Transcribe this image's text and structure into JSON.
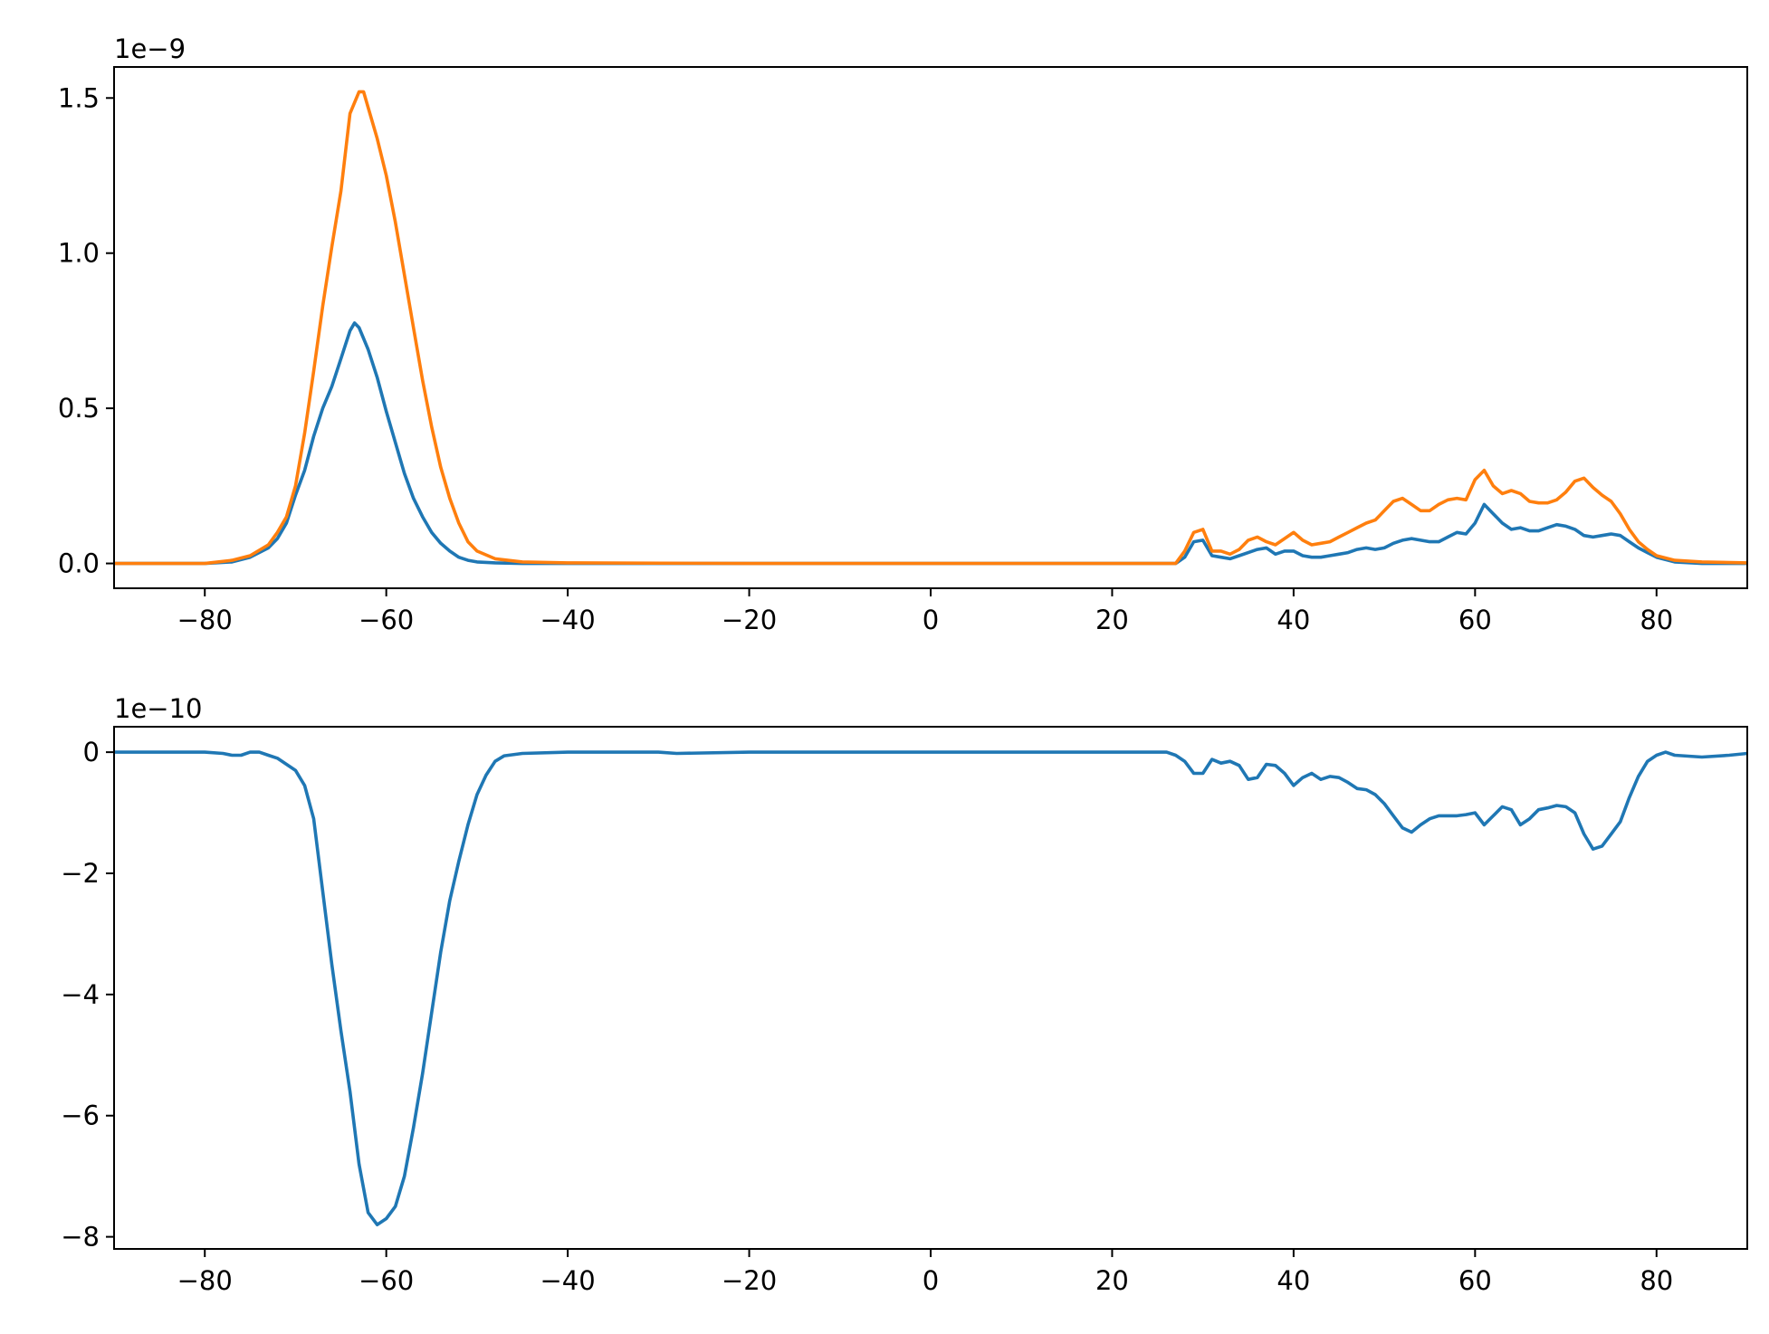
{
  "chart_data": [
    {
      "type": "line",
      "title": "",
      "xlabel": "",
      "ylabel": "",
      "offset_label": "1e−9",
      "offset_multiplier": 1e-09,
      "xlim": [
        -90,
        90
      ],
      "ylim": [
        -0.08,
        1.6
      ],
      "grid": false,
      "xticks": [
        -80,
        -60,
        -40,
        -20,
        0,
        20,
        40,
        60,
        80
      ],
      "xtick_labels": [
        "−80",
        "−60",
        "−40",
        "−20",
        "0",
        "20",
        "40",
        "60",
        "80"
      ],
      "yticks": [
        0.0,
        0.5,
        1.0,
        1.5
      ],
      "ytick_labels": [
        "0.0",
        "0.5",
        "1.0",
        "1.5"
      ],
      "series": [
        {
          "color": "#1f77b4",
          "x": [
            -90,
            -80,
            -77,
            -75,
            -73,
            -72,
            -71,
            -70,
            -69,
            -68,
            -67,
            -66,
            -65,
            -64,
            -63.5,
            -63,
            -62,
            -61,
            -60,
            -59,
            -58,
            -57,
            -56,
            -55,
            -54,
            -53,
            -52,
            -51,
            -50,
            -48,
            -45,
            -40,
            -20,
            0,
            26,
            27,
            28,
            29,
            30,
            31,
            32,
            33,
            34,
            35,
            36,
            37,
            38,
            39,
            40,
            41,
            42,
            43,
            44,
            45,
            46,
            47,
            48,
            49,
            50,
            51,
            52,
            53,
            54,
            55,
            56,
            57,
            58,
            59,
            60,
            61,
            62,
            63,
            64,
            65,
            66,
            67,
            68,
            69,
            70,
            71,
            72,
            73,
            74,
            75,
            76,
            77,
            78,
            79,
            80,
            82,
            85,
            90
          ],
          "values": [
            0.0,
            0.0,
            0.005,
            0.02,
            0.05,
            0.08,
            0.13,
            0.22,
            0.3,
            0.41,
            0.5,
            0.57,
            0.66,
            0.75,
            0.775,
            0.76,
            0.69,
            0.6,
            0.49,
            0.39,
            0.29,
            0.21,
            0.15,
            0.1,
            0.065,
            0.04,
            0.02,
            0.01,
            0.005,
            0.002,
            0.0,
            0.0,
            0.0,
            0.0,
            0.0,
            0.0,
            0.02,
            0.07,
            0.075,
            0.025,
            0.02,
            0.015,
            0.025,
            0.035,
            0.045,
            0.05,
            0.03,
            0.04,
            0.04,
            0.025,
            0.02,
            0.02,
            0.025,
            0.03,
            0.035,
            0.045,
            0.05,
            0.045,
            0.05,
            0.065,
            0.075,
            0.08,
            0.075,
            0.07,
            0.07,
            0.085,
            0.1,
            0.095,
            0.13,
            0.19,
            0.16,
            0.13,
            0.11,
            0.115,
            0.105,
            0.105,
            0.115,
            0.125,
            0.12,
            0.11,
            0.09,
            0.085,
            0.09,
            0.095,
            0.09,
            0.07,
            0.05,
            0.035,
            0.02,
            0.005,
            0.0,
            0.0
          ]
        },
        {
          "color": "#ff7f0e",
          "x": [
            -90,
            -80,
            -77,
            -75,
            -73,
            -72,
            -71,
            -70,
            -69,
            -68,
            -67,
            -66,
            -65,
            -64,
            -63,
            -62.5,
            -62,
            -61,
            -60,
            -59,
            -58,
            -57,
            -56,
            -55,
            -54,
            -53,
            -52,
            -51,
            -50,
            -48,
            -45,
            -40,
            -20,
            0,
            26,
            27,
            28,
            29,
            30,
            31,
            32,
            33,
            34,
            35,
            36,
            37,
            38,
            39,
            40,
            41,
            42,
            43,
            44,
            45,
            46,
            47,
            48,
            49,
            50,
            51,
            52,
            53,
            54,
            55,
            56,
            57,
            58,
            59,
            60,
            61,
            62,
            63,
            64,
            65,
            66,
            67,
            68,
            69,
            70,
            71,
            72,
            73,
            74,
            75,
            76,
            77,
            78,
            79,
            80,
            82,
            85,
            90
          ],
          "values": [
            0.0,
            0.0,
            0.01,
            0.025,
            0.06,
            0.1,
            0.15,
            0.25,
            0.42,
            0.62,
            0.83,
            1.02,
            1.2,
            1.45,
            1.52,
            1.52,
            1.47,
            1.37,
            1.25,
            1.1,
            0.93,
            0.76,
            0.59,
            0.44,
            0.31,
            0.21,
            0.13,
            0.07,
            0.04,
            0.015,
            0.005,
            0.002,
            0.0,
            0.0,
            0.0,
            0.0,
            0.04,
            0.1,
            0.11,
            0.04,
            0.04,
            0.03,
            0.045,
            0.075,
            0.085,
            0.07,
            0.06,
            0.08,
            0.1,
            0.075,
            0.06,
            0.065,
            0.07,
            0.085,
            0.1,
            0.115,
            0.13,
            0.14,
            0.17,
            0.2,
            0.21,
            0.19,
            0.17,
            0.17,
            0.19,
            0.205,
            0.21,
            0.205,
            0.27,
            0.3,
            0.25,
            0.225,
            0.235,
            0.225,
            0.2,
            0.195,
            0.195,
            0.205,
            0.23,
            0.265,
            0.275,
            0.245,
            0.22,
            0.2,
            0.16,
            0.11,
            0.07,
            0.045,
            0.025,
            0.01,
            0.005,
            0.002
          ]
        }
      ]
    },
    {
      "type": "line",
      "title": "",
      "xlabel": "",
      "ylabel": "",
      "offset_label": "1e−10",
      "offset_multiplier": 1e-10,
      "xlim": [
        -90,
        90
      ],
      "ylim": [
        -8.2,
        0.42
      ],
      "grid": false,
      "xticks": [
        -80,
        -60,
        -40,
        -20,
        0,
        20,
        40,
        60,
        80
      ],
      "xtick_labels": [
        "−80",
        "−60",
        "−40",
        "−20",
        "0",
        "20",
        "40",
        "60",
        "80"
      ],
      "yticks": [
        0,
        -2,
        -4,
        -6,
        -8
      ],
      "ytick_labels": [
        "0",
        "−2",
        "−4",
        "−6",
        "−8"
      ],
      "series": [
        {
          "color": "#1f77b4",
          "x": [
            -90,
            -80,
            -78,
            -77,
            -76,
            -75,
            -74,
            -73,
            -72,
            -71,
            -70,
            -69,
            -68,
            -67,
            -66,
            -65,
            -64,
            -63,
            -62,
            -61,
            -60,
            -59,
            -58,
            -57,
            -56,
            -55,
            -54,
            -53,
            -52,
            -51,
            -50,
            -49,
            -48,
            -47,
            -45,
            -40,
            -30,
            -28,
            -20,
            0,
            26,
            27,
            28,
            29,
            30,
            31,
            32,
            33,
            34,
            35,
            36,
            37,
            38,
            39,
            40,
            41,
            42,
            43,
            44,
            45,
            46,
            47,
            48,
            49,
            50,
            51,
            52,
            53,
            54,
            55,
            56,
            57,
            58,
            59,
            60,
            61,
            62,
            63,
            64,
            65,
            66,
            67,
            68,
            69,
            70,
            71,
            72,
            73,
            74,
            75,
            76,
            77,
            78,
            79,
            80,
            81,
            82,
            85,
            88,
            90
          ],
          "values": [
            0.0,
            0.0,
            -0.02,
            -0.05,
            -0.05,
            0.0,
            0.0,
            -0.05,
            -0.1,
            -0.2,
            -0.3,
            -0.55,
            -1.1,
            -2.3,
            -3.5,
            -4.6,
            -5.6,
            -6.8,
            -7.6,
            -7.8,
            -7.7,
            -7.5,
            -7.0,
            -6.2,
            -5.3,
            -4.3,
            -3.3,
            -2.45,
            -1.8,
            -1.2,
            -0.7,
            -0.38,
            -0.15,
            -0.06,
            -0.02,
            0.0,
            0.0,
            -0.02,
            0.0,
            0.0,
            0.0,
            -0.05,
            -0.15,
            -0.35,
            -0.35,
            -0.12,
            -0.18,
            -0.15,
            -0.22,
            -0.45,
            -0.42,
            -0.2,
            -0.22,
            -0.35,
            -0.55,
            -0.42,
            -0.35,
            -0.45,
            -0.4,
            -0.42,
            -0.5,
            -0.6,
            -0.62,
            -0.7,
            -0.85,
            -1.05,
            -1.25,
            -1.32,
            -1.2,
            -1.1,
            -1.05,
            -1.05,
            -1.05,
            -1.03,
            -1.0,
            -1.2,
            -1.05,
            -0.9,
            -0.95,
            -1.2,
            -1.1,
            -0.95,
            -0.92,
            -0.88,
            -0.9,
            -1.0,
            -1.35,
            -1.6,
            -1.55,
            -1.35,
            -1.15,
            -0.75,
            -0.4,
            -0.15,
            -0.05,
            0.0,
            -0.05,
            -0.08,
            -0.05,
            -0.02
          ]
        }
      ]
    }
  ]
}
